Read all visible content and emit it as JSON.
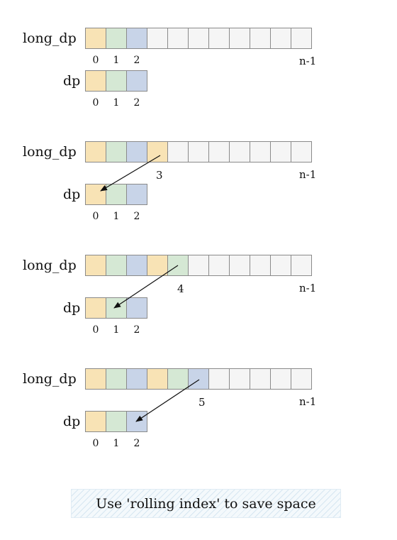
{
  "palette": {
    "slot0": "#f8e3b5",
    "slot1": "#d5e8d4",
    "slot2": "#c8d4e8",
    "empty": "#f5f5f5",
    "border": "#8a8a8a",
    "caption_bg": "#f4f9fc"
  },
  "labels": {
    "long_array": "long_dp",
    "short_array": "dp",
    "last_index": "n-1"
  },
  "short_indices": [
    "0",
    "1",
    "2"
  ],
  "panels": [
    {
      "name": "initial",
      "long_fill": [
        "slot0",
        "slot1",
        "slot2",
        "empty",
        "empty",
        "empty",
        "empty",
        "empty",
        "empty",
        "empty",
        "empty"
      ],
      "long_indices": [
        "0",
        "1",
        "2"
      ],
      "current_index": ""
    },
    {
      "name": "step-3",
      "long_fill": [
        "slot0",
        "slot1",
        "slot2",
        "slot0",
        "empty",
        "empty",
        "empty",
        "empty",
        "empty",
        "empty",
        "empty"
      ],
      "long_indices": [],
      "current_index": "3",
      "arrow_target_slot": 0
    },
    {
      "name": "step-4",
      "long_fill": [
        "slot0",
        "slot1",
        "slot2",
        "slot0",
        "slot1",
        "empty",
        "empty",
        "empty",
        "empty",
        "empty",
        "empty"
      ],
      "long_indices": [],
      "current_index": "4",
      "arrow_target_slot": 1
    },
    {
      "name": "step-5",
      "long_fill": [
        "slot0",
        "slot1",
        "slot2",
        "slot0",
        "slot1",
        "slot2",
        "empty",
        "empty",
        "empty",
        "empty",
        "empty"
      ],
      "long_indices": [],
      "current_index": "5",
      "arrow_target_slot": 2
    }
  ],
  "caption": "Use 'rolling index' to save space"
}
